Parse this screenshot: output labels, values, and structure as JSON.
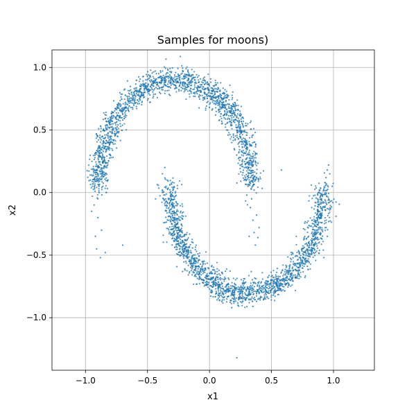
{
  "chart_data": {
    "type": "scatter",
    "title": "Samples for moons)",
    "xlabel": "x1",
    "ylabel": "x2",
    "xlim": [
      -1.27,
      1.33
    ],
    "ylim": [
      -1.42,
      1.14
    ],
    "grid": true,
    "x_ticks": [
      -1.0,
      -0.5,
      0.0,
      0.5,
      1.0
    ],
    "x_tick_labels": [
      "−1.0",
      "−0.5",
      "0.0",
      "0.5",
      "1.0"
    ],
    "y_ticks": [
      1.0,
      0.5,
      0.0,
      -0.5,
      -1.0
    ],
    "y_tick_labels": [
      "1.0",
      "0.5",
      "0.0",
      "−0.5",
      "−1.0"
    ],
    "point_color": "#1f77b4",
    "series": [
      {
        "description": "upper moon",
        "points": [
          [
            -0.92,
            -0.35
          ],
          [
            -0.95,
            -0.15
          ],
          [
            -0.9,
            -0.05
          ],
          [
            -0.93,
            0.05
          ],
          [
            -0.88,
            0.15
          ],
          [
            -0.85,
            0.25
          ],
          [
            -0.82,
            0.35
          ],
          [
            -0.8,
            0.45
          ],
          [
            -0.75,
            0.5
          ],
          [
            -0.7,
            0.58
          ],
          [
            -0.65,
            0.65
          ],
          [
            -0.6,
            0.72
          ],
          [
            -0.55,
            0.78
          ],
          [
            -0.5,
            0.82
          ],
          [
            -0.45,
            0.85
          ],
          [
            -0.4,
            0.88
          ],
          [
            -0.35,
            0.9
          ],
          [
            -0.3,
            0.9
          ],
          [
            -0.25,
            0.88
          ],
          [
            -0.2,
            0.86
          ],
          [
            -0.15,
            0.83
          ],
          [
            -0.1,
            0.79
          ],
          [
            -0.05,
            0.74
          ],
          [
            0.0,
            0.68
          ],
          [
            0.05,
            0.62
          ],
          [
            0.1,
            0.55
          ],
          [
            0.15,
            0.46
          ],
          [
            0.2,
            0.35
          ],
          [
            0.25,
            0.22
          ],
          [
            0.28,
            0.1
          ],
          [
            0.3,
            -0.02
          ],
          [
            0.33,
            -0.12
          ],
          [
            0.35,
            -0.22
          ],
          [
            0.36,
            -0.32
          ],
          [
            0.37,
            -0.42
          ],
          [
            -0.87,
            -0.3
          ],
          [
            -0.91,
            -0.45
          ],
          [
            -0.88,
            -0.52
          ],
          [
            -0.84,
            -0.48
          ],
          [
            -0.96,
            0.1
          ],
          [
            -0.86,
            0.05
          ],
          [
            -0.82,
            0.22
          ],
          [
            -0.78,
            0.4
          ],
          [
            -0.72,
            0.55
          ],
          [
            -0.62,
            0.68
          ],
          [
            -0.52,
            0.8
          ],
          [
            -0.42,
            0.83
          ],
          [
            -0.32,
            0.94
          ],
          [
            -0.22,
            0.91
          ],
          [
            -0.12,
            0.8
          ],
          [
            -0.02,
            0.72
          ],
          [
            0.08,
            0.58
          ],
          [
            0.18,
            0.4
          ],
          [
            0.24,
            0.28
          ],
          [
            0.27,
            0.16
          ],
          [
            0.31,
            0.05
          ],
          [
            0.34,
            -0.05
          ],
          [
            0.38,
            -0.18
          ],
          [
            0.4,
            -0.28
          ],
          [
            0.32,
            -0.35
          ],
          [
            0.36,
            0.02
          ],
          [
            0.26,
            0.3
          ],
          [
            0.12,
            0.62
          ],
          [
            -0.08,
            0.84
          ],
          [
            -0.28,
            0.86
          ],
          [
            -0.48,
            0.78
          ],
          [
            -0.68,
            0.62
          ],
          [
            -0.8,
            0.3
          ],
          [
            -0.9,
            -0.2
          ],
          [
            -0.93,
            -0.1
          ],
          [
            -0.89,
            0.0
          ],
          [
            -0.76,
            0.46
          ],
          [
            -0.58,
            0.74
          ],
          [
            -0.38,
            0.92
          ],
          [
            -0.18,
            0.84
          ],
          [
            0.02,
            0.66
          ],
          [
            0.14,
            0.5
          ],
          [
            0.22,
            0.3
          ],
          [
            0.29,
            0.12
          ],
          [
            0.39,
            -0.36
          ]
        ]
      },
      {
        "description": "lower moon",
        "points": [
          [
            -0.38,
            0.15
          ],
          [
            -0.35,
            0.05
          ],
          [
            -0.33,
            -0.05
          ],
          [
            -0.3,
            -0.15
          ],
          [
            -0.27,
            -0.25
          ],
          [
            -0.24,
            -0.35
          ],
          [
            -0.2,
            -0.45
          ],
          [
            -0.16,
            -0.55
          ],
          [
            -0.12,
            -0.62
          ],
          [
            -0.08,
            -0.68
          ],
          [
            -0.03,
            -0.74
          ],
          [
            0.02,
            -0.79
          ],
          [
            0.08,
            -0.82
          ],
          [
            0.14,
            -0.85
          ],
          [
            0.2,
            -0.87
          ],
          [
            0.26,
            -0.88
          ],
          [
            0.32,
            -0.88
          ],
          [
            0.38,
            -0.87
          ],
          [
            0.44,
            -0.85
          ],
          [
            0.5,
            -0.82
          ],
          [
            0.56,
            -0.78
          ],
          [
            0.62,
            -0.73
          ],
          [
            0.68,
            -0.66
          ],
          [
            0.73,
            -0.58
          ],
          [
            0.78,
            -0.49
          ],
          [
            0.83,
            -0.38
          ],
          [
            0.86,
            -0.27
          ],
          [
            0.89,
            -0.15
          ],
          [
            0.91,
            -0.03
          ],
          [
            0.93,
            0.08
          ],
          [
            0.95,
            0.18
          ],
          [
            0.96,
            0.22
          ],
          [
            -0.36,
            0.2
          ],
          [
            -0.32,
            0.0
          ],
          [
            -0.28,
            -0.2
          ],
          [
            -0.25,
            -0.3
          ],
          [
            -0.22,
            -0.4
          ],
          [
            -0.18,
            -0.5
          ],
          [
            -0.14,
            -0.58
          ],
          [
            -0.1,
            -0.65
          ],
          [
            -0.05,
            -0.72
          ],
          [
            0.0,
            -0.77
          ],
          [
            0.05,
            -0.81
          ],
          [
            0.11,
            -0.84
          ],
          [
            0.17,
            -0.86
          ],
          [
            0.23,
            -0.9
          ],
          [
            0.29,
            -0.86
          ],
          [
            0.35,
            -0.91
          ],
          [
            0.41,
            -0.84
          ],
          [
            0.47,
            -0.8
          ],
          [
            0.53,
            -0.8
          ],
          [
            0.59,
            -0.75
          ],
          [
            0.65,
            -0.7
          ],
          [
            0.7,
            -0.62
          ],
          [
            0.75,
            -0.54
          ],
          [
            0.8,
            -0.44
          ],
          [
            0.84,
            -0.33
          ],
          [
            0.87,
            -0.21
          ],
          [
            0.9,
            -0.09
          ],
          [
            0.92,
            0.02
          ],
          [
            0.94,
            0.12
          ],
          [
            -0.3,
            -0.1
          ],
          [
            -0.26,
            -0.28
          ],
          [
            -0.15,
            -0.6
          ],
          [
            0.1,
            -0.87
          ],
          [
            0.3,
            -0.84
          ],
          [
            0.55,
            -0.76
          ],
          [
            0.76,
            -0.52
          ],
          [
            0.88,
            -0.1
          ],
          [
            0.97,
            0.15
          ],
          [
            -0.34,
            0.1
          ],
          [
            -0.21,
            -0.43
          ],
          [
            0.18,
            -0.92
          ],
          [
            0.62,
            -0.7
          ],
          [
            0.85,
            -0.3
          ],
          [
            0.99,
            0.05
          ],
          [
            0.22,
            -1.32
          ],
          [
            0.58,
            0.18
          ],
          [
            -0.7,
            -0.42
          ],
          [
            0.95,
            -0.35
          ]
        ]
      }
    ]
  }
}
